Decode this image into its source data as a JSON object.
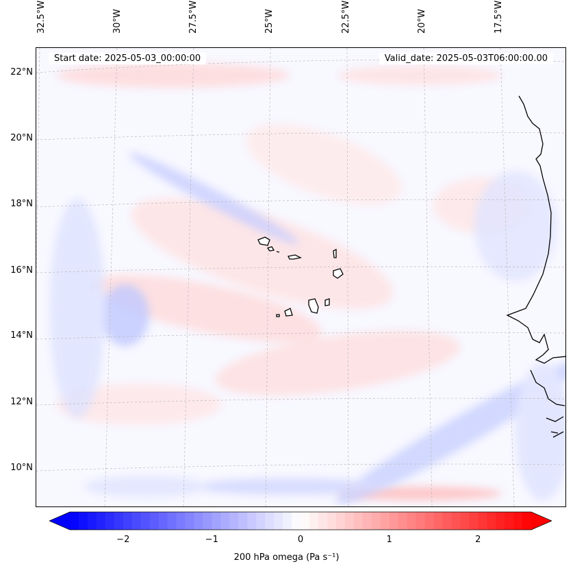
{
  "header": {
    "start_date": "Start date: 2025-05-03_00:00:00",
    "valid_date": "Valid_date: 2025-05-03T06:00:00.00"
  },
  "map": {
    "projection": "lambert-conformal",
    "extent": {
      "lon": [
        -32.5,
        -15.8
      ],
      "lat": [
        8.8,
        22.8
      ]
    },
    "lon_ticks": [
      "32.5°W",
      "30°W",
      "27.5°W",
      "25°W",
      "22.5°W",
      "20°W",
      "17.5°W"
    ],
    "lon_values": [
      -32.5,
      -30,
      -27.5,
      -25,
      -22.5,
      -20,
      -17.5
    ],
    "lat_ticks": [
      "22°N",
      "20°N",
      "18°N",
      "16°N",
      "14°N",
      "12°N",
      "10°N"
    ],
    "lat_values": [
      22,
      20,
      18,
      16,
      14,
      12,
      10
    ],
    "gridlines": true,
    "coastline_color": "#000000",
    "field": "200 hPa omega",
    "field_range": [
      -2.6,
      2.6
    ]
  },
  "colorbar": {
    "label": "200 hPa omega (Pa s⁻¹)",
    "ticks": [
      "−2",
      "−1",
      "0",
      "1",
      "2"
    ],
    "tick_values": [
      -2,
      -1,
      0,
      1,
      2
    ],
    "min": -2.6,
    "max": 2.6,
    "colors": {
      "negative": "#0000ff",
      "zero": "#ffffff",
      "positive": "#ff0000"
    },
    "extend": "both"
  }
}
